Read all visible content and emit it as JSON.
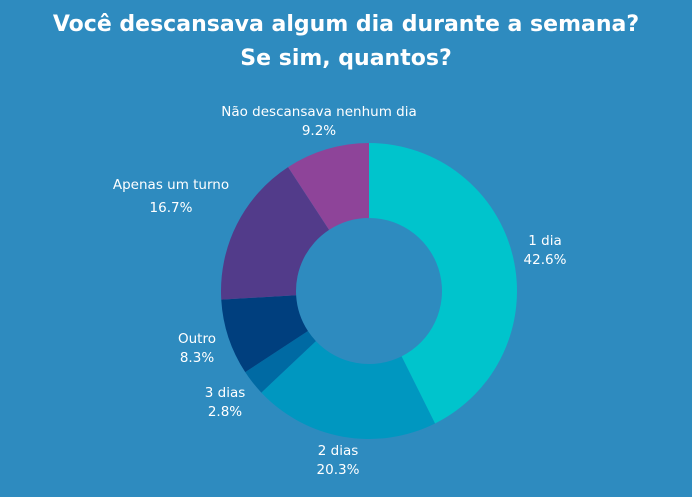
{
  "chart_data": {
    "type": "pie",
    "title_lines": [
      "Você descansava algum dia durante a semana?",
      "Se sim, quantos?"
    ],
    "donut": true,
    "slices": [
      {
        "label": "1 dia",
        "value": 42.6,
        "value_label": "42.6%",
        "color": "#00c4cc"
      },
      {
        "label": "2 dias",
        "value": 20.3,
        "value_label": "20.3%",
        "color": "#0097c0"
      },
      {
        "label": "3 dias",
        "value": 2.8,
        "value_label": "2.8%",
        "color": "#006aa3"
      },
      {
        "label": "Outro",
        "value": 8.3,
        "value_label": "8.3%",
        "color": "#003f7e"
      },
      {
        "label": "Apenas um turno",
        "value": 16.7,
        "value_label": "16.7%",
        "color": "#523b8a"
      },
      {
        "label": "Não descansava nenhum dia",
        "value": 9.2,
        "value_label": "9.2%",
        "color": "#8e4499"
      }
    ]
  }
}
